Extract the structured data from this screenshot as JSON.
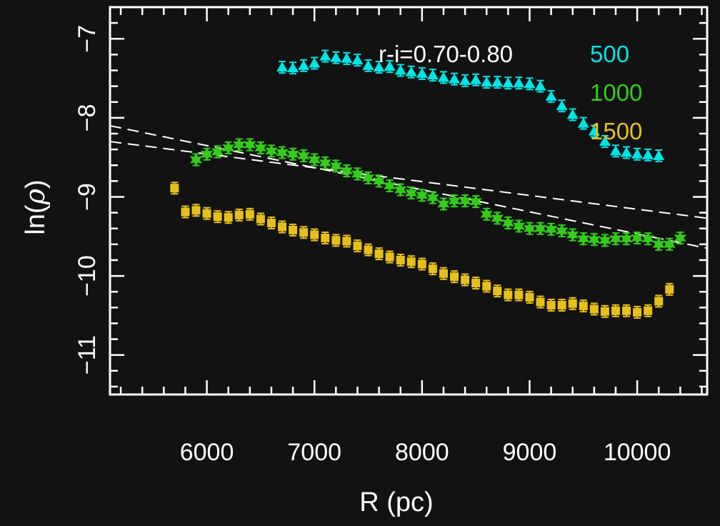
{
  "chart_data": {
    "type": "scatter",
    "xlabel": "R (pc)",
    "ylabel_prefix": "ln(",
    "ylabel_symbol": "ρ",
    "ylabel_suffix": ")",
    "xlim": [
      5100,
      10650
    ],
    "ylim": [
      -11.5,
      -6.6
    ],
    "x_ticks": [
      6000,
      7000,
      8000,
      9000,
      10000
    ],
    "x_tick_labels": [
      "6000",
      "7000",
      "8000",
      "9000",
      "10000"
    ],
    "y_ticks": [
      -7,
      -8,
      -9,
      -10,
      -11
    ],
    "y_tick_labels": [
      "−7",
      "−8",
      "−9",
      "−10",
      "−11"
    ],
    "annotation": "r-i=0.70-0.80",
    "legend_position": "top-right",
    "background_color": "#121212",
    "series": [
      {
        "name": "500",
        "color": "#00e5e5",
        "marker": "triangle",
        "x": [
          6700,
          6800,
          6900,
          7000,
          7100,
          7200,
          7300,
          7400,
          7500,
          7600,
          7700,
          7800,
          7900,
          8000,
          8100,
          8200,
          8300,
          8400,
          8500,
          8600,
          8700,
          8800,
          8900,
          9000,
          9100,
          9200,
          9300,
          9400,
          9500,
          9600,
          9700,
          9800,
          9900,
          10000,
          10100,
          10200
        ],
        "y": [
          -7.36,
          -7.37,
          -7.34,
          -7.31,
          -7.22,
          -7.24,
          -7.25,
          -7.27,
          -7.34,
          -7.36,
          -7.35,
          -7.4,
          -7.42,
          -7.44,
          -7.46,
          -7.49,
          -7.51,
          -7.53,
          -7.52,
          -7.55,
          -7.55,
          -7.56,
          -7.56,
          -7.57,
          -7.6,
          -7.73,
          -7.85,
          -7.96,
          -8.07,
          -8.17,
          -8.3,
          -8.42,
          -8.44,
          -8.46,
          -8.47,
          -8.48
        ]
      },
      {
        "name": "1000",
        "color": "#33cc1a",
        "marker": "star",
        "x": [
          5900,
          6000,
          6100,
          6200,
          6300,
          6400,
          6500,
          6600,
          6700,
          6800,
          6900,
          7000,
          7100,
          7200,
          7300,
          7400,
          7500,
          7600,
          7700,
          7800,
          7900,
          8000,
          8100,
          8200,
          8300,
          8400,
          8500,
          8600,
          8700,
          8800,
          8900,
          9000,
          9100,
          9200,
          9300,
          9400,
          9500,
          9600,
          9700,
          9800,
          9900,
          10000,
          10100,
          10200,
          10300,
          10400
        ],
        "y": [
          -8.53,
          -8.46,
          -8.43,
          -8.38,
          -8.34,
          -8.34,
          -8.38,
          -8.42,
          -8.44,
          -8.46,
          -8.48,
          -8.53,
          -8.57,
          -8.61,
          -8.67,
          -8.71,
          -8.76,
          -8.8,
          -8.86,
          -8.91,
          -8.95,
          -8.98,
          -9.01,
          -9.09,
          -9.05,
          -9.05,
          -9.06,
          -9.22,
          -9.27,
          -9.33,
          -9.37,
          -9.4,
          -9.4,
          -9.41,
          -9.43,
          -9.48,
          -9.53,
          -9.54,
          -9.55,
          -9.53,
          -9.53,
          -9.52,
          -9.53,
          -9.6,
          -9.6,
          -9.52
        ]
      },
      {
        "name": "1500",
        "color": "#e6c01a",
        "marker": "square",
        "x": [
          5700,
          5800,
          5900,
          6000,
          6100,
          6200,
          6300,
          6400,
          6500,
          6600,
          6700,
          6800,
          6900,
          7000,
          7100,
          7200,
          7300,
          7400,
          7500,
          7600,
          7700,
          7800,
          7900,
          8000,
          8100,
          8200,
          8300,
          8400,
          8500,
          8600,
          8700,
          8800,
          8900,
          9000,
          9100,
          9200,
          9300,
          9400,
          9500,
          9600,
          9700,
          9800,
          9900,
          10000,
          10100,
          10200,
          10300
        ],
        "y": [
          -8.89,
          -9.19,
          -9.17,
          -9.21,
          -9.25,
          -9.26,
          -9.23,
          -9.22,
          -9.28,
          -9.33,
          -9.38,
          -9.42,
          -9.45,
          -9.48,
          -9.52,
          -9.55,
          -9.56,
          -9.62,
          -9.67,
          -9.72,
          -9.76,
          -9.8,
          -9.82,
          -9.85,
          -9.91,
          -9.97,
          -10.01,
          -10.05,
          -10.09,
          -10.13,
          -10.19,
          -10.24,
          -10.24,
          -10.27,
          -10.33,
          -10.37,
          -10.37,
          -10.35,
          -10.38,
          -10.42,
          -10.45,
          -10.44,
          -10.44,
          -10.46,
          -10.44,
          -10.32,
          -10.17
        ]
      }
    ],
    "fit_lines": [
      {
        "x": [
          5100,
          10650
        ],
        "y": [
          -8.1,
          -9.65
        ]
      },
      {
        "x": [
          5100,
          10650
        ],
        "y": [
          -8.3,
          -9.27
        ]
      }
    ]
  }
}
